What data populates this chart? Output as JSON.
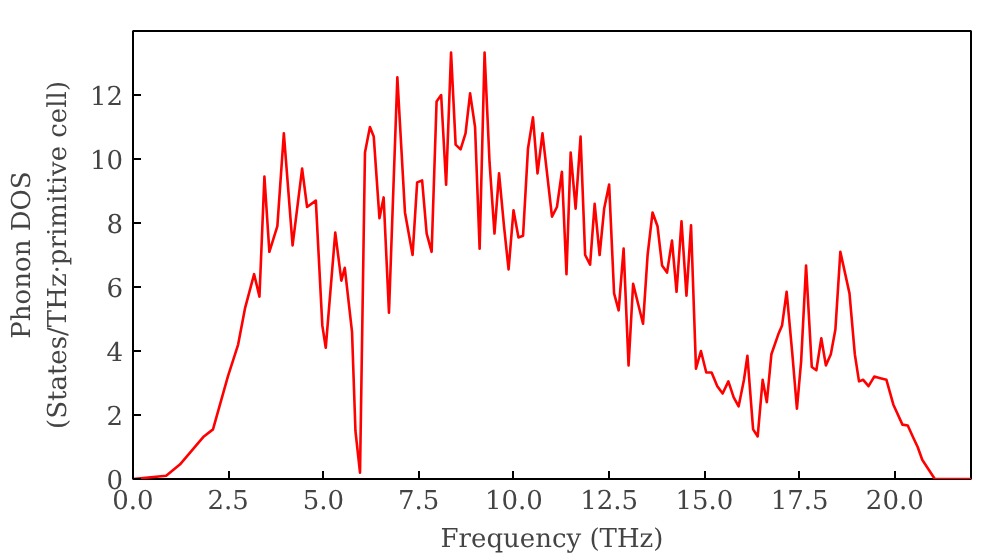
{
  "chart_data": {
    "type": "line",
    "xlabel": "Frequency (THz)",
    "ylabel": "Phonon DOS\n(States/THz·primitive cell)",
    "x": [
      0.0,
      0.87,
      1.23,
      1.86,
      2.1,
      2.49,
      2.76,
      2.94,
      3.18,
      3.32,
      3.45,
      3.58,
      3.79,
      3.96,
      4.19,
      4.44,
      4.57,
      4.8,
      4.97,
      5.06,
      5.31,
      5.47,
      5.56,
      5.75,
      5.84,
      5.96,
      6.09,
      6.22,
      6.32,
      6.47,
      6.58,
      6.72,
      6.94,
      7.14,
      7.34,
      7.46,
      7.59,
      7.71,
      7.84,
      7.97,
      8.09,
      8.22,
      8.35,
      8.47,
      8.6,
      8.73,
      8.85,
      8.98,
      9.1,
      9.23,
      9.36,
      9.49,
      9.61,
      9.74,
      9.86,
      9.99,
      10.12,
      10.24,
      10.37,
      10.5,
      10.62,
      10.75,
      10.88,
      11.0,
      11.13,
      11.26,
      11.38,
      11.49,
      11.62,
      11.75,
      11.87,
      12.0,
      12.12,
      12.25,
      12.37,
      12.5,
      12.63,
      12.75,
      12.88,
      13.01,
      13.13,
      13.39,
      13.51,
      13.64,
      13.77,
      13.89,
      14.02,
      14.15,
      14.27,
      14.4,
      14.53,
      14.65,
      14.78,
      14.91,
      15.05,
      15.19,
      15.34,
      15.48,
      15.63,
      15.77,
      15.9,
      16.04,
      16.13,
      16.28,
      16.4,
      16.53,
      16.64,
      16.76,
      16.95,
      17.04,
      17.16,
      17.31,
      17.43,
      17.54,
      17.67,
      17.82,
      17.94,
      18.07,
      18.19,
      18.32,
      18.44,
      18.57,
      18.81,
      18.95,
      19.06,
      19.17,
      19.31,
      19.46,
      19.62,
      19.78,
      19.96,
      20.2,
      20.34,
      20.47,
      20.6,
      20.72,
      20.87,
      21.05,
      22.0
    ],
    "series": [
      {
        "color": "#ff0000",
        "values": [
          0,
          0.1,
          0.45,
          1.33,
          1.55,
          3.2,
          4.2,
          5.33,
          6.4,
          5.7,
          9.45,
          7.1,
          7.9,
          10.8,
          7.3,
          9.7,
          8.5,
          8.7,
          4.8,
          4.1,
          7.7,
          6.2,
          6.6,
          4.6,
          1.5,
          0.2,
          10.2,
          11.0,
          10.7,
          8.15,
          8.8,
          5.2,
          12.55,
          8.33,
          7.0,
          9.27,
          9.33,
          7.67,
          7.1,
          11.8,
          12.0,
          9.2,
          13.33,
          10.45,
          10.3,
          10.8,
          12.05,
          11.0,
          7.2,
          13.33,
          9.9,
          7.67,
          9.55,
          7.9,
          6.55,
          8.4,
          7.55,
          7.6,
          10.33,
          11.3,
          9.55,
          10.8,
          9.45,
          8.2,
          8.5,
          9.6,
          6.4,
          10.2,
          8.45,
          10.7,
          7.0,
          6.7,
          8.6,
          7.0,
          8.45,
          9.2,
          5.8,
          5.27,
          7.2,
          3.55,
          6.1,
          4.85,
          7.0,
          8.33,
          7.9,
          6.67,
          6.45,
          7.45,
          5.85,
          8.05,
          5.73,
          7.93,
          3.45,
          4.0,
          3.33,
          3.33,
          2.9,
          2.67,
          3.05,
          2.55,
          2.27,
          3.1,
          3.85,
          1.55,
          1.33,
          3.1,
          2.4,
          3.9,
          4.55,
          4.8,
          5.85,
          3.9,
          2.2,
          3.67,
          6.67,
          3.5,
          3.4,
          4.4,
          3.55,
          3.9,
          4.67,
          7.1,
          5.8,
          3.9,
          3.05,
          3.1,
          2.9,
          3.2,
          3.15,
          3.1,
          2.33,
          1.7,
          1.67,
          1.33,
          1.0,
          0.6,
          0.33,
          0,
          0
        ]
      }
    ],
    "xlim": [
      0,
      22.0
    ],
    "ylim": [
      0,
      14
    ],
    "xticks": [
      {
        "value": 0,
        "label": "0.0"
      },
      2.5,
      {
        "value": 5,
        "label": "5.0"
      },
      7.5,
      {
        "value": 10,
        "label": "10.0"
      },
      12.5,
      {
        "value": 15,
        "label": "15.0"
      },
      17.5,
      {
        "value": 20,
        "label": "20.0"
      }
    ],
    "yticks": [
      0,
      2,
      4,
      6,
      8,
      10,
      12
    ],
    "grid": false,
    "line_style": "solid"
  }
}
